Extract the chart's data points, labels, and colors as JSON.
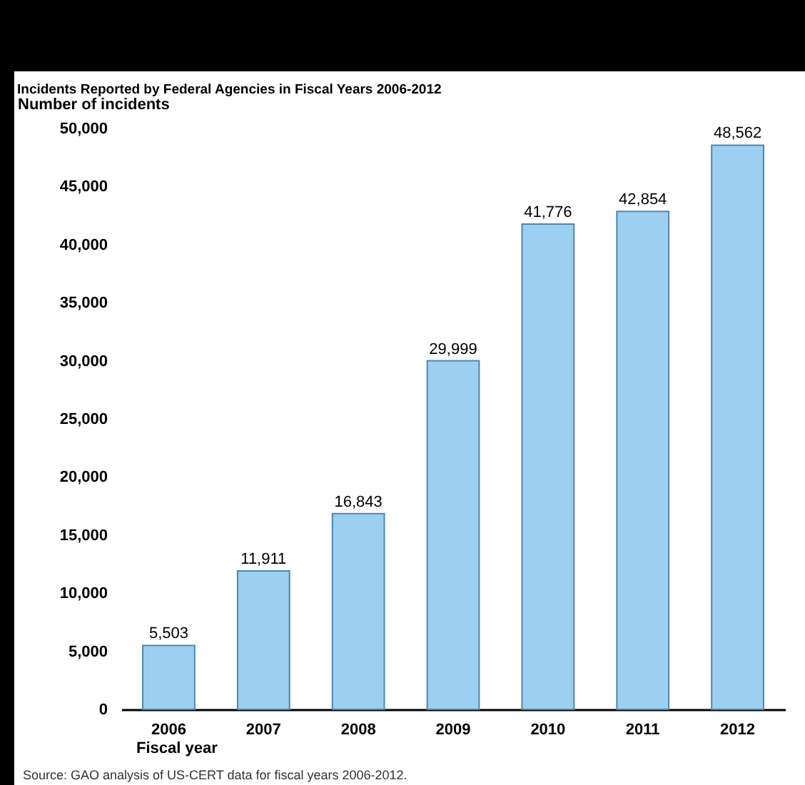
{
  "chart_data": {
    "type": "bar",
    "title": "Incidents Reported by Federal Agencies in Fiscal Years 2006-2012",
    "ylabel": "Number of incidents",
    "xlabel": "Fiscal year",
    "categories": [
      "2006",
      "2007",
      "2008",
      "2009",
      "2010",
      "2011",
      "2012"
    ],
    "values": [
      5503,
      11911,
      16843,
      29999,
      41776,
      42854,
      48562
    ],
    "color": "#9dcff0",
    "ylim": [
      0,
      50000
    ],
    "yticks": [
      {
        "value": 0,
        "label": "0"
      },
      {
        "value": 5000,
        "label": "5,000"
      },
      {
        "value": 10000,
        "label": "10,000"
      },
      {
        "value": 15000,
        "label": "15,000"
      },
      {
        "value": 20000,
        "label": "20,000"
      },
      {
        "value": 25000,
        "label": "25,000"
      },
      {
        "value": 30000,
        "label": "30,000"
      },
      {
        "value": 35000,
        "label": "35,000"
      },
      {
        "value": 40000,
        "label": "40,000"
      },
      {
        "value": 45000,
        "label": "45,000"
      },
      {
        "value": 50000,
        "label": "50,000"
      }
    ],
    "value_labels": [
      "5,503",
      "11,911",
      "16,843",
      "29,999",
      "41,776",
      "42,854",
      "48,562"
    ],
    "grid": false,
    "annotations": [
      "Source: GAO analysis of US-CERT data for fiscal years 2006-2012."
    ]
  }
}
